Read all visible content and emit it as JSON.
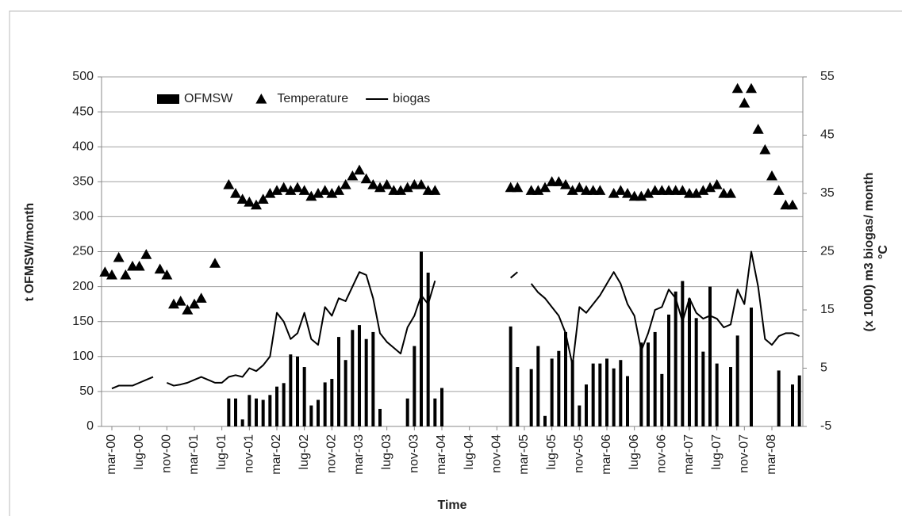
{
  "chart_data": {
    "type": "combo",
    "y_label": "t OFMSW/month",
    "y2_label": [
      "(x 1000) m3 biogas/ month",
      "°C"
    ],
    "x_label": "Time",
    "categories": [
      null,
      "mar-00",
      null,
      null,
      null,
      "lug-00",
      null,
      null,
      null,
      "nov-00",
      null,
      null,
      null,
      "mar-01",
      null,
      null,
      null,
      "lug-01",
      null,
      null,
      null,
      "nov-01",
      null,
      null,
      null,
      "mar-02",
      null,
      null,
      null,
      "lug-02",
      null,
      null,
      null,
      "nov-02",
      null,
      null,
      null,
      "mar-03",
      null,
      null,
      null,
      "lug-03",
      null,
      null,
      null,
      "nov-03",
      null,
      null,
      null,
      "mar-04",
      null,
      null,
      null,
      "lug-04",
      null,
      null,
      null,
      "nov-04",
      null,
      null,
      null,
      "mar-05",
      null,
      null,
      null,
      "lug-05",
      null,
      null,
      null,
      "nov-05",
      null,
      null,
      null,
      "mar-06",
      null,
      null,
      null,
      "lug-06",
      null,
      null,
      null,
      "nov-06",
      null,
      null,
      null,
      "mar-07",
      null,
      null,
      null,
      "lug-07",
      null,
      null,
      null,
      "nov-07",
      null,
      null,
      null,
      "mar-08",
      null,
      null,
      null,
      null
    ],
    "ylim": [
      0,
      500
    ],
    "yticks": [
      0,
      50,
      100,
      150,
      200,
      250,
      300,
      350,
      400,
      450,
      500
    ],
    "y2lim": [
      -5,
      55
    ],
    "y2ticks": [
      -5,
      5,
      15,
      25,
      35,
      45,
      55
    ],
    "grid": true,
    "legend": "top-left",
    "series": [
      {
        "name": "OFMSW",
        "type": "bar",
        "axis": "y",
        "color": "#000000",
        "values": [
          null,
          null,
          null,
          null,
          null,
          null,
          null,
          null,
          null,
          null,
          null,
          null,
          null,
          null,
          null,
          null,
          null,
          null,
          40,
          40,
          10,
          45,
          40,
          38,
          45,
          57,
          62,
          103,
          100,
          85,
          30,
          38,
          63,
          68,
          128,
          95,
          138,
          145,
          125,
          135,
          25,
          null,
          null,
          null,
          40,
          115,
          250,
          220,
          40,
          55,
          null,
          null,
          null,
          null,
          null,
          null,
          null,
          null,
          null,
          143,
          85,
          null,
          82,
          115,
          15,
          97,
          108,
          135,
          95,
          30,
          60,
          90,
          90,
          97,
          83,
          95,
          72,
          null,
          120,
          120,
          135,
          75,
          160,
          193,
          208,
          183,
          155,
          107,
          200,
          90,
          null,
          85,
          130,
          null,
          170,
          null,
          null,
          null,
          80,
          null,
          60,
          73
        ]
      },
      {
        "name": "Temperature",
        "type": "scatter",
        "marker": "triangle",
        "axis": "y2",
        "color": "#000000",
        "values": [
          21.5,
          21,
          24,
          21,
          22.5,
          22.5,
          24.5,
          null,
          22,
          21,
          16,
          16.5,
          15,
          16,
          17,
          null,
          23,
          null,
          36.5,
          35,
          34,
          33.5,
          33,
          34,
          35,
          35.5,
          36,
          35.5,
          36,
          35.5,
          34.5,
          35,
          35.5,
          35,
          35.5,
          36.5,
          38,
          39,
          37.5,
          36.5,
          36,
          36.5,
          35.5,
          35.5,
          36,
          36.5,
          36.5,
          35.5,
          35.5,
          null,
          null,
          null,
          null,
          null,
          null,
          null,
          null,
          null,
          null,
          36,
          36,
          null,
          35.5,
          35.5,
          36,
          37,
          37,
          36.5,
          35.5,
          36,
          35.5,
          35.5,
          35.5,
          null,
          35,
          35.5,
          35,
          34.5,
          34.5,
          35,
          35.5,
          35.5,
          35.5,
          35.5,
          35.5,
          35,
          35,
          35.5,
          36,
          36.5,
          35,
          35,
          53,
          50.5,
          53,
          46,
          42.5,
          38,
          35.5,
          33,
          33,
          null
        ]
      },
      {
        "name": "biogas",
        "type": "line",
        "axis": "y2",
        "color": "#000000",
        "values": [
          null,
          1.5,
          2,
          2,
          2,
          2.5,
          3,
          3.5,
          null,
          2.5,
          2,
          2.2,
          2.5,
          3,
          3.5,
          3,
          2.5,
          2.5,
          3.5,
          3.8,
          3.5,
          5,
          4.5,
          5.5,
          7,
          14.5,
          13,
          10,
          11,
          14.5,
          10,
          9,
          15.5,
          14,
          17,
          16.5,
          19,
          21.5,
          21,
          17,
          11,
          9.5,
          8.5,
          7.5,
          12,
          14,
          17.5,
          16,
          20,
          null,
          null,
          null,
          null,
          null,
          null,
          null,
          null,
          null,
          null,
          20.5,
          21.5,
          null,
          19.5,
          18,
          17,
          15.5,
          14,
          11,
          5.5,
          15.5,
          14.5,
          16,
          17.5,
          19.5,
          21.5,
          19.5,
          16,
          14,
          8,
          11,
          15,
          15.5,
          18.5,
          17,
          13,
          17,
          14.5,
          13.5,
          14,
          13.5,
          12,
          12.5,
          18.5,
          16,
          25,
          19,
          10,
          9,
          10.5,
          11,
          11,
          10.5
        ]
      }
    ]
  }
}
